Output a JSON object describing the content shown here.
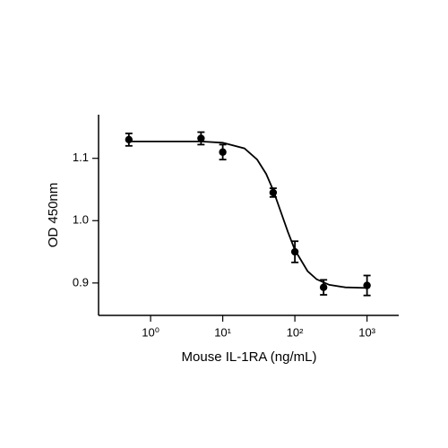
{
  "chart_data": {
    "type": "scatter",
    "x_label": "Mouse IL-1RA (ng/mL)",
    "y_label": "OD 450nm",
    "x_log": true,
    "xlim": [
      0.19,
      2750
    ],
    "ylim": [
      0.848,
      1.17
    ],
    "xticks": [
      {
        "value": 1,
        "label": "10⁰"
      },
      {
        "value": 10,
        "label": "10¹"
      },
      {
        "value": 100,
        "label": "10²"
      },
      {
        "value": 1000,
        "label": "10³"
      }
    ],
    "yticks": [
      {
        "value": 0.9,
        "label": "0.9"
      },
      {
        "value": 1.0,
        "label": "1.0"
      },
      {
        "value": 1.1,
        "label": "1.1"
      }
    ],
    "series": [
      {
        "color": "#000000",
        "x": [
          0.5,
          5,
          10,
          50,
          100,
          250,
          1000
        ],
        "values": [
          1.13,
          1.132,
          1.11,
          1.045,
          0.95,
          0.893,
          0.896
        ],
        "errors": [
          0.01,
          0.01,
          0.012,
          0.007,
          0.017,
          0.012,
          0.016
        ]
      },
      {
        "type": "line",
        "color": "#000000",
        "x": [
          0.5,
          5,
          10,
          20,
          30,
          40,
          50,
          60,
          70,
          80,
          100,
          150,
          200,
          300,
          500,
          1000
        ],
        "values": [
          1.127,
          1.127,
          1.125,
          1.116,
          1.098,
          1.075,
          1.049,
          1.023,
          1.001,
          0.982,
          0.953,
          0.919,
          0.906,
          0.897,
          0.893,
          0.892
        ]
      }
    ]
  }
}
